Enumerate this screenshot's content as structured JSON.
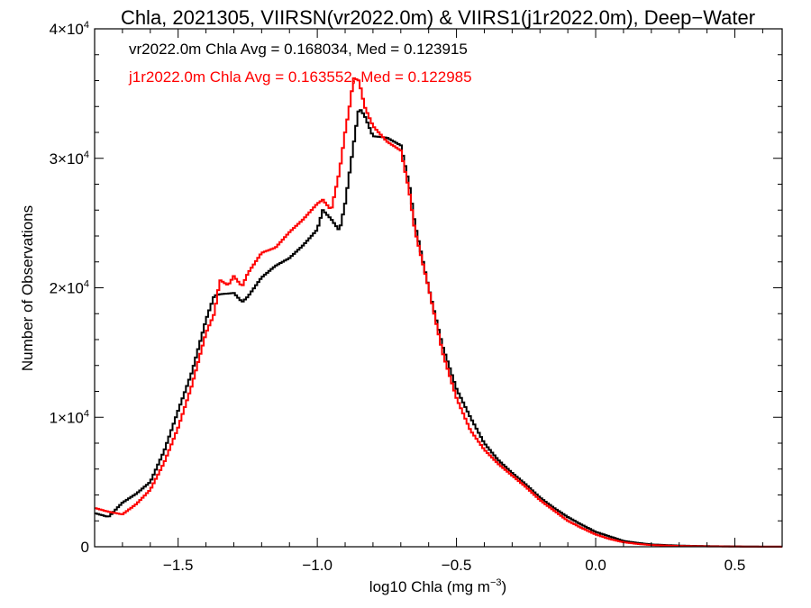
{
  "chart_data": {
    "type": "line",
    "title": "Chla, 2021305, VIIRSN(vr2022.0m) & VIIRS1(j1r2022.0m), Deep−Water",
    "xlabel": "log10 Chla (mg m",
    "xlabel_sup": "−3",
    "xlabel_end": ")",
    "ylabel": "Number of Observations",
    "xlim": [
      -1.8,
      0.67
    ],
    "ylim": [
      0,
      40000
    ],
    "grid": false,
    "x_ticks": [
      -1.5,
      -1.0,
      -0.5,
      0.0,
      0.5
    ],
    "x_tick_labels": [
      "−1.5",
      "−1.0",
      "−0.5",
      "0.0",
      "0.5"
    ],
    "y_ticks": [
      {
        "value": 0,
        "base": "0",
        "exp": ""
      },
      {
        "value": 10000,
        "base": "1×10",
        "exp": "4"
      },
      {
        "value": 20000,
        "base": "2×10",
        "exp": "4"
      },
      {
        "value": 30000,
        "base": "3×10",
        "exp": "4"
      },
      {
        "value": 40000,
        "base": "4×10",
        "exp": "4"
      }
    ],
    "annotations": [
      {
        "text": "vr2022.0m Chla Avg = 0.168034, Med = 0.123915",
        "color": "#000000"
      },
      {
        "text": "j1r2022.0m Chla Avg = 0.163552, Med = 0.122985",
        "color": "#ff0000"
      }
    ],
    "series": [
      {
        "color": "#000000",
        "points": [
          [
            -1.8,
            2600
          ],
          [
            -1.75,
            2300
          ],
          [
            -1.7,
            3400
          ],
          [
            -1.65,
            4100
          ],
          [
            -1.6,
            5000
          ],
          [
            -1.55,
            7400
          ],
          [
            -1.5,
            10500
          ],
          [
            -1.45,
            13500
          ],
          [
            -1.4,
            17500
          ],
          [
            -1.37,
            19400
          ],
          [
            -1.35,
            19500
          ],
          [
            -1.3,
            19600
          ],
          [
            -1.27,
            18900
          ],
          [
            -1.25,
            19300
          ],
          [
            -1.2,
            20800
          ],
          [
            -1.15,
            21700
          ],
          [
            -1.1,
            22300
          ],
          [
            -1.05,
            23300
          ],
          [
            -1.0,
            24500
          ],
          [
            -0.98,
            26000
          ],
          [
            -0.95,
            25300
          ],
          [
            -0.92,
            24400
          ],
          [
            -0.9,
            26500
          ],
          [
            -0.88,
            29500
          ],
          [
            -0.86,
            32500
          ],
          [
            -0.85,
            33900
          ],
          [
            -0.83,
            33300
          ],
          [
            -0.8,
            31700
          ],
          [
            -0.75,
            31600
          ],
          [
            -0.7,
            31000
          ],
          [
            -0.67,
            28000
          ],
          [
            -0.65,
            25000
          ],
          [
            -0.6,
            20000
          ],
          [
            -0.55,
            15500
          ],
          [
            -0.5,
            12200
          ],
          [
            -0.45,
            10000
          ],
          [
            -0.4,
            8000
          ],
          [
            -0.35,
            6700
          ],
          [
            -0.3,
            5700
          ],
          [
            -0.25,
            4800
          ],
          [
            -0.2,
            3800
          ],
          [
            -0.15,
            3000
          ],
          [
            -0.1,
            2300
          ],
          [
            -0.05,
            1700
          ],
          [
            0.0,
            1150
          ],
          [
            0.05,
            800
          ],
          [
            0.1,
            450
          ],
          [
            0.15,
            300
          ],
          [
            0.2,
            180
          ],
          [
            0.3,
            90
          ],
          [
            0.4,
            50
          ],
          [
            0.5,
            25
          ],
          [
            0.6,
            10
          ],
          [
            0.67,
            5
          ]
        ]
      },
      {
        "color": "#ff0000",
        "points": [
          [
            -1.8,
            3000
          ],
          [
            -1.75,
            2700
          ],
          [
            -1.7,
            2500
          ],
          [
            -1.65,
            3300
          ],
          [
            -1.6,
            4400
          ],
          [
            -1.55,
            6500
          ],
          [
            -1.5,
            9200
          ],
          [
            -1.45,
            12500
          ],
          [
            -1.4,
            16500
          ],
          [
            -1.37,
            18000
          ],
          [
            -1.35,
            20600
          ],
          [
            -1.32,
            20200
          ],
          [
            -1.3,
            20900
          ],
          [
            -1.27,
            20100
          ],
          [
            -1.25,
            21100
          ],
          [
            -1.2,
            22700
          ],
          [
            -1.15,
            23100
          ],
          [
            -1.1,
            24300
          ],
          [
            -1.05,
            25300
          ],
          [
            -1.0,
            26500
          ],
          [
            -0.98,
            26800
          ],
          [
            -0.95,
            26000
          ],
          [
            -0.92,
            29000
          ],
          [
            -0.9,
            32000
          ],
          [
            -0.88,
            34500
          ],
          [
            -0.87,
            36200
          ],
          [
            -0.85,
            36000
          ],
          [
            -0.83,
            34000
          ],
          [
            -0.8,
            32500
          ],
          [
            -0.75,
            31300
          ],
          [
            -0.7,
            30600
          ],
          [
            -0.67,
            27500
          ],
          [
            -0.65,
            24500
          ],
          [
            -0.6,
            20000
          ],
          [
            -0.55,
            15000
          ],
          [
            -0.5,
            11500
          ],
          [
            -0.45,
            9000
          ],
          [
            -0.4,
            7500
          ],
          [
            -0.35,
            6400
          ],
          [
            -0.3,
            5500
          ],
          [
            -0.25,
            4600
          ],
          [
            -0.2,
            3600
          ],
          [
            -0.15,
            2800
          ],
          [
            -0.1,
            2000
          ],
          [
            -0.05,
            1450
          ],
          [
            0.0,
            950
          ],
          [
            0.05,
            600
          ],
          [
            0.1,
            350
          ],
          [
            0.15,
            220
          ],
          [
            0.2,
            130
          ],
          [
            0.3,
            60
          ],
          [
            0.4,
            30
          ],
          [
            0.5,
            15
          ],
          [
            0.6,
            8
          ],
          [
            0.67,
            4
          ]
        ]
      }
    ]
  }
}
